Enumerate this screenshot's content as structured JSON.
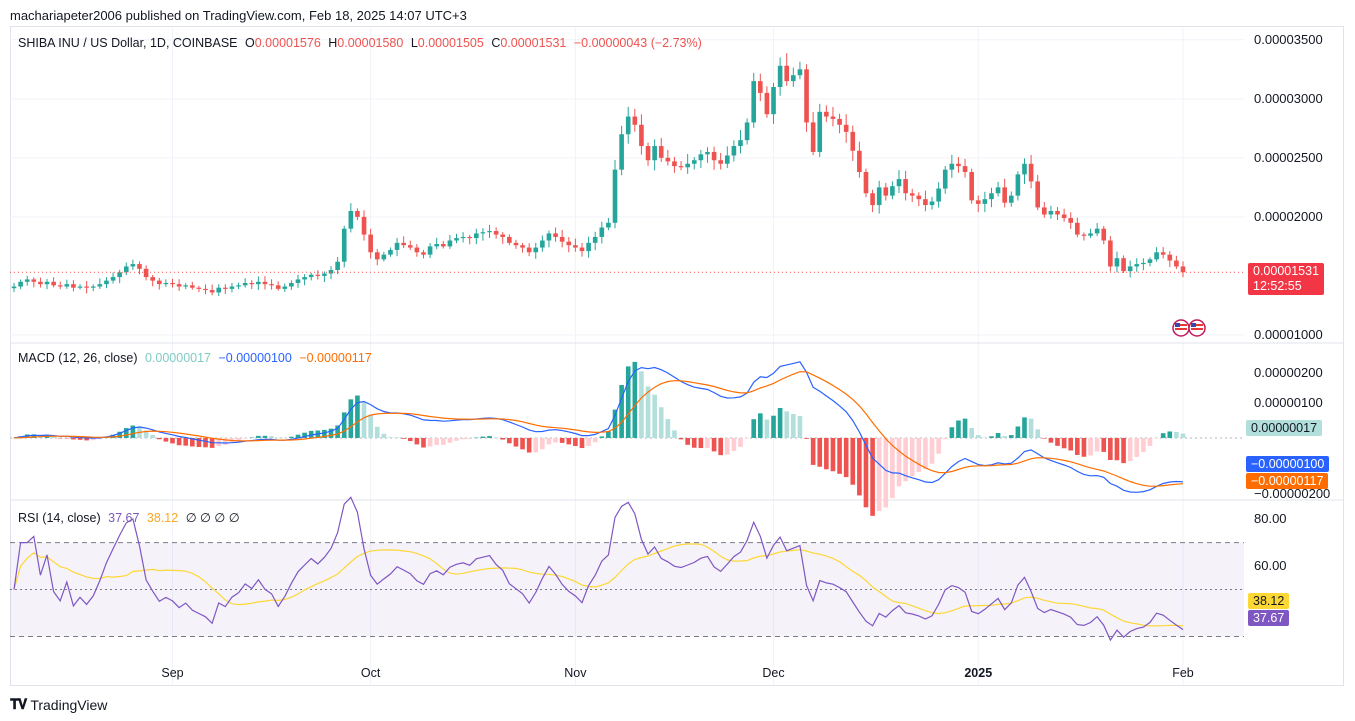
{
  "publisher": "machariapeter2006 published on TradingView.com, Feb 18, 2025 14:07 UTC+3",
  "footer": {
    "brand": "TradingView"
  },
  "colors": {
    "up": "#26a69a",
    "down": "#ef5350",
    "macd": "#2962ff",
    "signal": "#ff6d00",
    "rsi": "#7e57c2",
    "rsi_ma": "#fdd835",
    "hist_up_strong": "#26a69a",
    "hist_up_weak": "#b2dfdb",
    "hist_down_strong": "#ef5350",
    "hist_down_weak": "#ffcdd2"
  },
  "legend": {
    "symbol": "SHIBA INU / US Dollar, 1D, COINBASE",
    "o_label": "O",
    "o_val": "0.00001576",
    "h_label": "H",
    "h_val": "0.00001580",
    "l_label": "L",
    "l_val": "0.00001505",
    "c_label": "C",
    "c_val": "0.00001531",
    "change": "−0.00000043 (−2.73%)",
    "macd_title": "MACD (12, 26, close)",
    "macd_hist": "0.00000017",
    "macd_line": "−0.00000100",
    "macd_signal": "−0.00000117",
    "rsi_title": "RSI (14, close)",
    "rsi_val": "37.67",
    "rsi_ma_val": "38.12",
    "rsi_extra": "∅ ∅ ∅ ∅"
  },
  "price_labels": {
    "last_price": "0.00001531",
    "countdown": "12:52:55",
    "macd_hist": "0.00000017",
    "macd_line": "−0.00000100",
    "macd_signal": "−0.00000117",
    "rsi_ma": "38.12",
    "rsi": "37.67"
  },
  "chart_data": [
    {
      "type": "candlestick",
      "title": "SHIBA INU / US Dollar, 1D, COINBASE",
      "x_ticks": [
        "Sep",
        "Oct",
        "Nov",
        "Dec",
        "2025",
        "Feb"
      ],
      "y_ticks": [
        "0.00003500",
        "0.00003000",
        "0.00002500",
        "0.00002000",
        "0.00001000"
      ],
      "ylim": [
        9.4e-06,
        3.6e-05
      ],
      "last_close": 1.531e-05,
      "closes": [
        1.41e-05,
        1.45e-05,
        1.47e-05,
        1.45e-05,
        1.43e-05,
        1.45e-05,
        1.42e-05,
        1.41e-05,
        1.43e-05,
        1.4e-05,
        1.41e-05,
        1.4e-05,
        1.41e-05,
        1.43e-05,
        1.46e-05,
        1.49e-05,
        1.53e-05,
        1.58e-05,
        1.6e-05,
        1.56e-05,
        1.49e-05,
        1.46e-05,
        1.43e-05,
        1.44e-05,
        1.43e-05,
        1.41e-05,
        1.42e-05,
        1.4e-05,
        1.39e-05,
        1.38e-05,
        1.36e-05,
        1.4e-05,
        1.39e-05,
        1.41e-05,
        1.42e-05,
        1.44e-05,
        1.43e-05,
        1.45e-05,
        1.43e-05,
        1.42e-05,
        1.39e-05,
        1.41e-05,
        1.44e-05,
        1.47e-05,
        1.49e-05,
        1.51e-05,
        1.5e-05,
        1.52e-05,
        1.55e-05,
        1.62e-05,
        1.9e-05,
        2.05e-05,
        2e-05,
        1.85e-05,
        1.7e-05,
        1.64e-05,
        1.68e-05,
        1.72e-05,
        1.78e-05,
        1.76e-05,
        1.74e-05,
        1.7e-05,
        1.68e-05,
        1.75e-05,
        1.77e-05,
        1.75e-05,
        1.8e-05,
        1.82e-05,
        1.83e-05,
        1.82e-05,
        1.86e-05,
        1.87e-05,
        1.88e-05,
        1.85e-05,
        1.83e-05,
        1.78e-05,
        1.76e-05,
        1.74e-05,
        1.7e-05,
        1.74e-05,
        1.8e-05,
        1.86e-05,
        1.83e-05,
        1.79e-05,
        1.76e-05,
        1.74e-05,
        1.71e-05,
        1.78e-05,
        1.83e-05,
        1.91e-05,
        1.95e-05,
        2.4e-05,
        2.7e-05,
        2.85e-05,
        2.78e-05,
        2.6e-05,
        2.48e-05,
        2.6e-05,
        2.5e-05,
        2.47e-05,
        2.43e-05,
        2.42e-05,
        2.45e-05,
        2.48e-05,
        2.53e-05,
        2.55e-05,
        2.48e-05,
        2.45e-05,
        2.52e-05,
        2.6e-05,
        2.65e-05,
        2.8e-05,
        3.15e-05,
        3.05e-05,
        2.87e-05,
        3.1e-05,
        3.28e-05,
        3.15e-05,
        3.2e-05,
        3.25e-05,
        2.8e-05,
        2.55e-05,
        2.89e-05,
        2.85e-05,
        2.83e-05,
        2.78e-05,
        2.72e-05,
        2.56e-05,
        2.38e-05,
        2.2e-05,
        2.1e-05,
        2.25e-05,
        2.18e-05,
        2.26e-05,
        2.32e-05,
        2.2e-05,
        2.18e-05,
        2.15e-05,
        2.1e-05,
        2.13e-05,
        2.24e-05,
        2.4e-05,
        2.45e-05,
        2.43e-05,
        2.38e-05,
        2.14e-05,
        2.11e-05,
        2.15e-05,
        2.2e-05,
        2.25e-05,
        2.12e-05,
        2.18e-05,
        2.36e-05,
        2.45e-05,
        2.3e-05,
        2.08e-05,
        2.02e-05,
        2.05e-05,
        2.02e-05,
        1.99e-05,
        1.95e-05,
        1.85e-05,
        1.84e-05,
        1.86e-05,
        1.9e-05,
        1.8e-05,
        1.58e-05,
        1.65e-05,
        1.54e-05,
        1.58e-05,
        1.6e-05,
        1.61e-05,
        1.64e-05,
        1.7e-05,
        1.68e-05,
        1.63e-05,
        1.58e-05,
        1.531e-05
      ]
    },
    {
      "type": "line",
      "title": "MACD (12, 26, close)",
      "y_ticks": [
        "0.00000200",
        "0.00000100",
        "−0.00000200"
      ],
      "series": [
        {
          "name": "MACD"
        },
        {
          "name": "Signal"
        },
        {
          "name": "Histogram"
        }
      ],
      "last": {
        "macd": -1e-06,
        "signal": -1.17e-06,
        "hist": 1.7e-07
      }
    },
    {
      "type": "line",
      "title": "RSI (14, close)",
      "y_ticks": [
        "80.00",
        "60.00"
      ],
      "ylim": [
        20,
        86
      ],
      "bands": [
        70,
        50,
        30
      ],
      "series": [
        {
          "name": "RSI"
        },
        {
          "name": "RSI MA"
        }
      ],
      "last": {
        "rsi": 37.67,
        "rsi_ma": 38.12
      }
    }
  ]
}
